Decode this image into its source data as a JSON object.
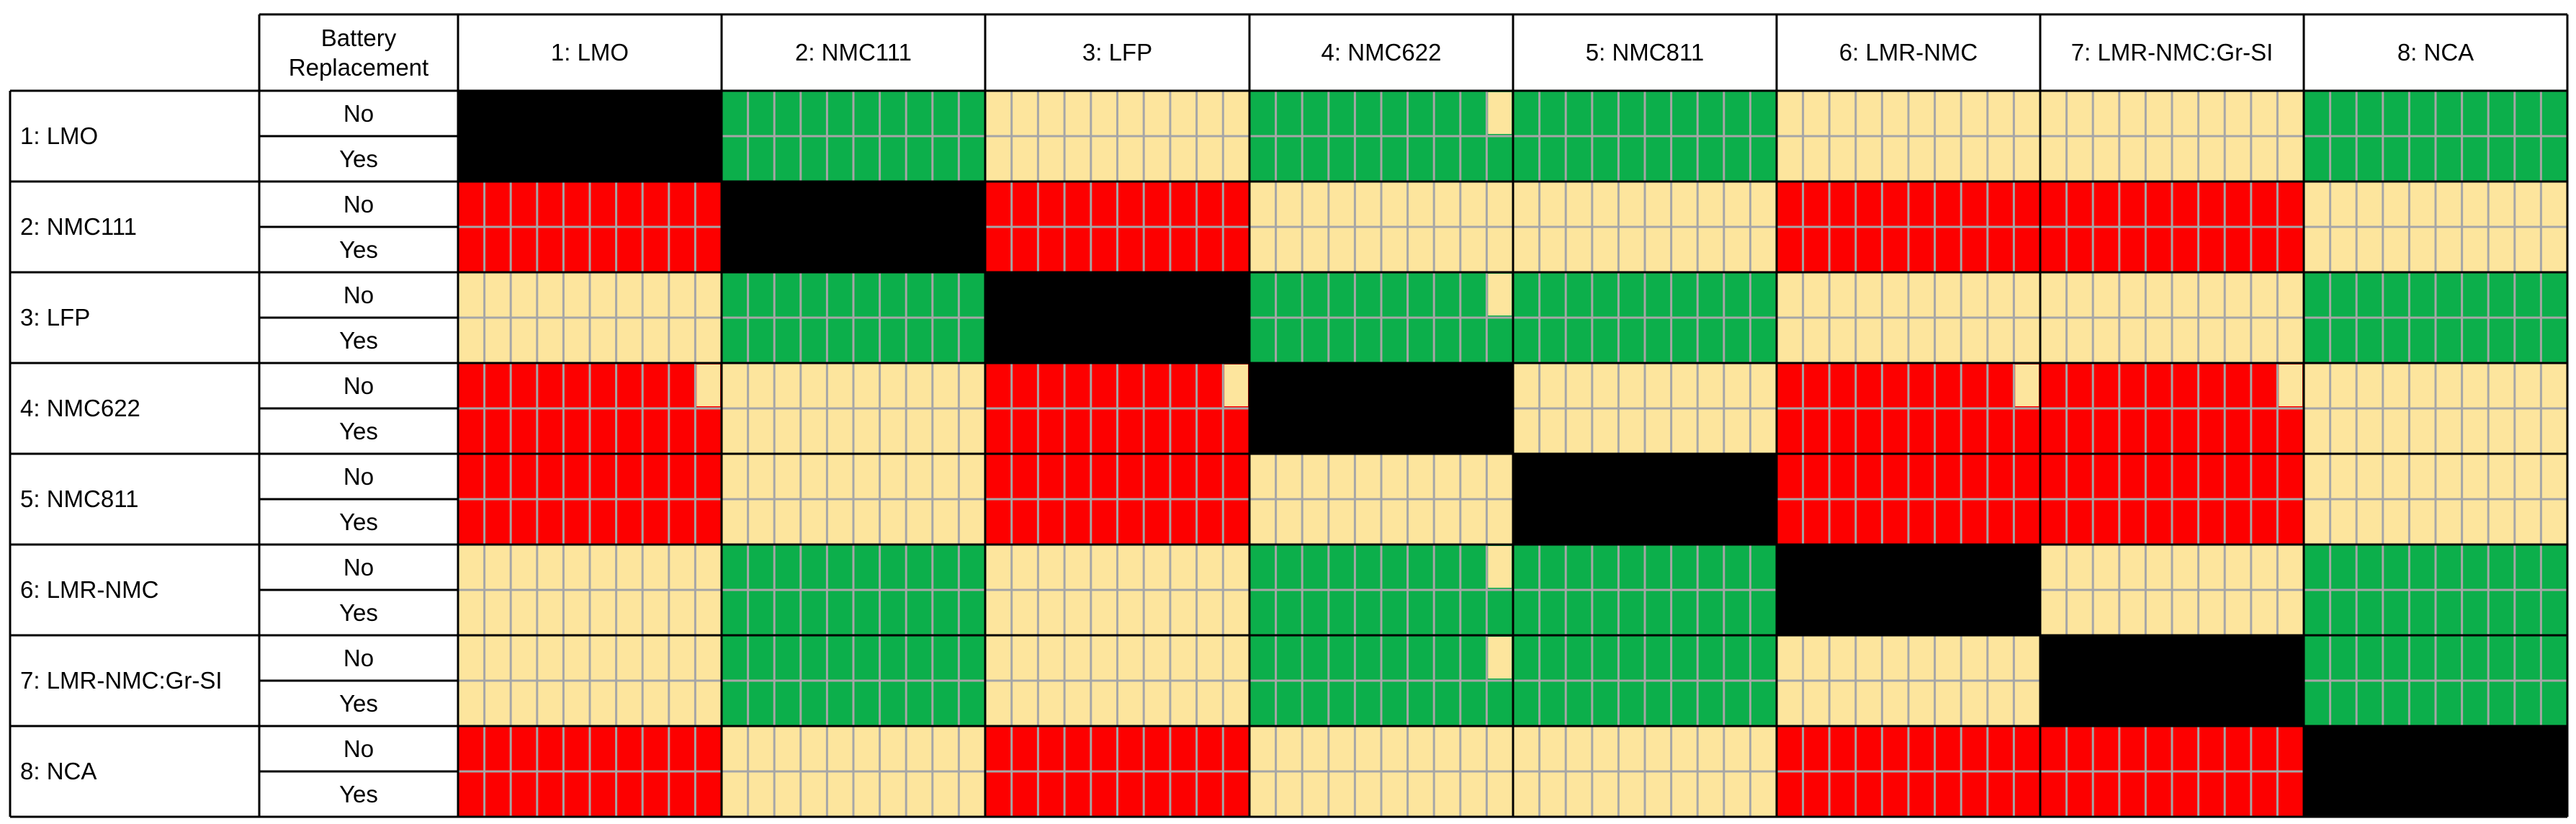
{
  "chart_data": {
    "type": "heatmap",
    "title": "",
    "column_header_first": "Battery\nReplacement",
    "columns": [
      "1: LMO",
      "2: NMC111",
      "3: LFP",
      "4: NMC622",
      "5: NMC811",
      "6: LMR-NMC",
      "7: LMR-NMC:Gr-SI",
      "8: NCA"
    ],
    "rows": [
      "1: LMO",
      "2: NMC111",
      "3: LFP",
      "4: NMC622",
      "5: NMC811",
      "6: LMR-NMC",
      "7: LMR-NMC:Gr-SI",
      "8: NCA"
    ],
    "sub_rows": [
      "No",
      "Yes"
    ],
    "cells_per_row": 10,
    "legend_colors": {
      "green": "#0caf4b",
      "yellow": "#fde59d",
      "red": "#fd0000",
      "diagonal": "#000000",
      "grid_line": "#a6a6a6"
    },
    "cell_colors": [
      [
        "black",
        "green",
        "yellow",
        "green",
        "green",
        "yellow",
        "yellow",
        "green"
      ],
      [
        "red",
        "black",
        "red",
        "yellow",
        "yellow",
        "red",
        "red",
        "yellow"
      ],
      [
        "yellow",
        "green",
        "black",
        "green",
        "green",
        "yellow",
        "yellow",
        "green"
      ],
      [
        "red",
        "yellow",
        "red",
        "black",
        "yellow",
        "red",
        "red",
        "yellow"
      ],
      [
        "red",
        "yellow",
        "red",
        "yellow",
        "black",
        "red",
        "red",
        "yellow"
      ],
      [
        "yellow",
        "green",
        "yellow",
        "green",
        "green",
        "black",
        "yellow",
        "green"
      ],
      [
        "yellow",
        "green",
        "yellow",
        "green",
        "green",
        "yellow",
        "black",
        "green"
      ],
      [
        "red",
        "yellow",
        "red",
        "yellow",
        "yellow",
        "red",
        "red",
        "black"
      ]
    ],
    "partial_last_segment_no_row": [
      {
        "row": 0,
        "col": 3,
        "fill": "yellow"
      },
      {
        "row": 2,
        "col": 3,
        "fill": "yellow"
      },
      {
        "row": 3,
        "col": 0,
        "fill": "yellow"
      },
      {
        "row": 3,
        "col": 2,
        "fill": "yellow"
      },
      {
        "row": 3,
        "col": 5,
        "fill": "yellow"
      },
      {
        "row": 3,
        "col": 6,
        "fill": "yellow"
      },
      {
        "row": 5,
        "col": 3,
        "fill": "yellow"
      },
      {
        "row": 6,
        "col": 3,
        "fill": "yellow"
      }
    ]
  }
}
